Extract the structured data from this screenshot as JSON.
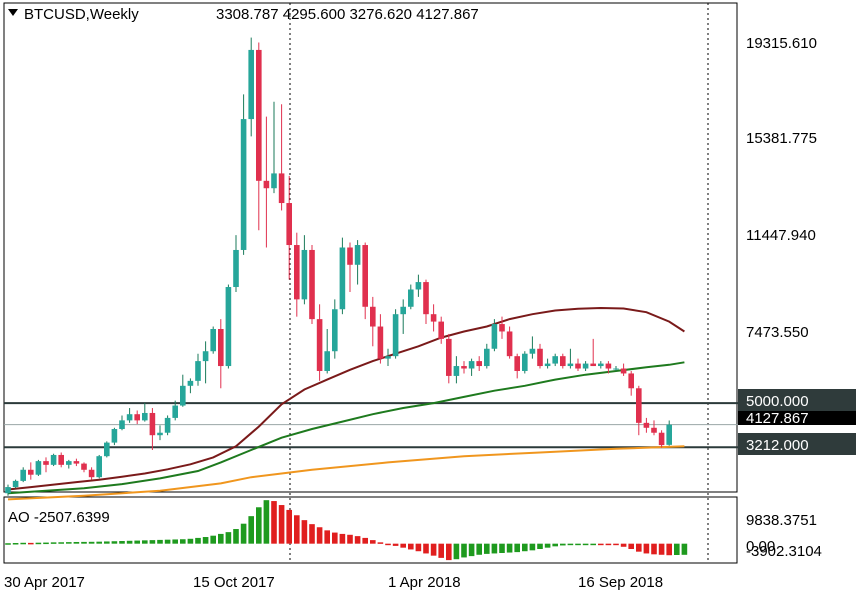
{
  "colors": {
    "bull": "#26a69a",
    "bull_dark": "#1a7a5a",
    "bear": "#e0304e",
    "ma_long": "#7a1a1a",
    "ma_mid": "#1e7a1e",
    "ma_short": "#f0961e",
    "level_line": "#2b3a3a",
    "label_bg": "#2f3b3b",
    "ao_up": "#1e9a1e",
    "ao_down": "#e01e1e",
    "axis": "#000000"
  },
  "header": {
    "symbol": "BTCUSD,Weekly",
    "ohlc": "3308.787 4295.600 3276.620 4127.867",
    "dropdown_icon": "triangle-down-icon"
  },
  "chart_data": {
    "type": "candlestick",
    "title": "BTCUSD,Weekly",
    "price_axis_labels": [
      "19315.610",
      "15381.775",
      "11447.940",
      "7473.550"
    ],
    "x_tick_labels": [
      "30 Apr 2017",
      "15 Oct 2017",
      "1 Apr 2018",
      "16 Sep 2018"
    ],
    "ylim": [
      1400,
      21200
    ],
    "current_price": "4127.867",
    "levels": [
      {
        "label": "5000.000",
        "value": 5000
      },
      {
        "label": "3212.000",
        "value": 3212
      }
    ],
    "candles": [
      [
        1350,
        1700,
        1250,
        1600
      ],
      [
        1600,
        1900,
        1550,
        1850
      ],
      [
        1850,
        2400,
        1800,
        2300
      ],
      [
        2300,
        2600,
        1900,
        2100
      ],
      [
        2100,
        2700,
        2050,
        2650
      ],
      [
        2650,
        2800,
        2200,
        2500
      ],
      [
        2500,
        2950,
        2450,
        2900
      ],
      [
        2900,
        3000,
        2400,
        2500
      ],
      [
        2500,
        2700,
        2350,
        2650
      ],
      [
        2650,
        2750,
        2450,
        2550
      ],
      [
        2550,
        2600,
        2200,
        2300
      ],
      [
        2300,
        2400,
        1900,
        2000
      ],
      [
        2000,
        2900,
        1950,
        2850
      ],
      [
        2850,
        3450,
        2800,
        3400
      ],
      [
        3400,
        4000,
        3300,
        3950
      ],
      [
        3950,
        4500,
        3900,
        4300
      ],
      [
        4300,
        4800,
        4200,
        4550
      ],
      [
        4550,
        4700,
        4150,
        4300
      ],
      [
        4300,
        5000,
        4250,
        4600
      ],
      [
        4600,
        4800,
        3100,
        3700
      ],
      [
        3700,
        4100,
        3500,
        3800
      ],
      [
        3800,
        4500,
        3700,
        4400
      ],
      [
        4400,
        5100,
        4300,
        4900
      ],
      [
        4900,
        6150,
        4850,
        5700
      ],
      [
        5700,
        6000,
        5400,
        5900
      ],
      [
        5900,
        7000,
        5700,
        6700
      ],
      [
        6700,
        7500,
        5800,
        7100
      ],
      [
        7100,
        8100,
        7000,
        8000
      ],
      [
        8000,
        8400,
        5600,
        6500
      ],
      [
        6500,
        9800,
        6400,
        9700
      ],
      [
        9700,
        11800,
        9500,
        11200
      ],
      [
        11200,
        17500,
        11000,
        16500
      ],
      [
        16500,
        19800,
        15800,
        19300
      ],
      [
        19300,
        19600,
        12000,
        14000
      ],
      [
        14000,
        16600,
        11300,
        13700
      ],
      [
        13700,
        17200,
        13500,
        14300
      ],
      [
        14300,
        17100,
        12800,
        13100
      ],
      [
        13100,
        14200,
        10000,
        11400
      ],
      [
        11400,
        11900,
        8500,
        9200
      ],
      [
        9200,
        11800,
        9000,
        11200
      ],
      [
        11200,
        11400,
        8200,
        8400
      ],
      [
        8400,
        9000,
        5900,
        6300
      ],
      [
        6300,
        8000,
        6200,
        7100
      ],
      [
        7100,
        9200,
        6800,
        8800
      ],
      [
        8800,
        11700,
        8600,
        11300
      ],
      [
        11300,
        11500,
        9500,
        10600
      ],
      [
        10600,
        11600,
        9800,
        11400
      ],
      [
        11400,
        11500,
        8400,
        8900
      ],
      [
        8900,
        9300,
        7300,
        8100
      ],
      [
        8100,
        8600,
        6600,
        6800
      ],
      [
        6800,
        7200,
        6500,
        6900
      ],
      [
        6900,
        8800,
        6800,
        8600
      ],
      [
        8600,
        9200,
        7800,
        8900
      ],
      [
        8900,
        9800,
        8800,
        9600
      ],
      [
        9600,
        10200,
        9300,
        9900
      ],
      [
        9900,
        10000,
        8200,
        8600
      ],
      [
        8600,
        9000,
        7900,
        8300
      ],
      [
        8300,
        8500,
        7400,
        7600
      ],
      [
        7600,
        7800,
        5800,
        6100
      ],
      [
        6100,
        6900,
        5800,
        6500
      ],
      [
        6500,
        6700,
        6200,
        6400
      ],
      [
        6400,
        6800,
        6100,
        6700
      ],
      [
        6700,
        6900,
        6300,
        6500
      ],
      [
        6500,
        7400,
        6400,
        7200
      ],
      [
        7200,
        8400,
        7100,
        8200
      ],
      [
        8200,
        8500,
        7600,
        7900
      ],
      [
        7900,
        8100,
        6800,
        6900
      ],
      [
        6900,
        7000,
        6000,
        6300
      ],
      [
        6300,
        7100,
        6200,
        7000
      ],
      [
        7000,
        7700,
        6800,
        7200
      ],
      [
        7200,
        7400,
        6400,
        6500
      ],
      [
        6500,
        6800,
        6400,
        6600
      ],
      [
        6600,
        7000,
        6500,
        6900
      ],
      [
        6900,
        7000,
        6400,
        6500
      ],
      [
        6500,
        7200,
        6400,
        6600
      ],
      [
        6600,
        6800,
        6300,
        6400
      ],
      [
        6400,
        6700,
        6300,
        6600
      ],
      [
        6600,
        7600,
        6500,
        6500
      ],
      [
        6500,
        6700,
        6400,
        6600
      ],
      [
        6600,
        6700,
        6200,
        6400
      ],
      [
        6400,
        6500,
        6300,
        6400
      ],
      [
        6400,
        6600,
        6100,
        6200
      ],
      [
        6200,
        6300,
        5300,
        5600
      ],
      [
        5600,
        5700,
        3700,
        4200
      ],
      [
        4200,
        4400,
        3800,
        4000
      ],
      [
        4000,
        4300,
        3700,
        3800
      ],
      [
        3800,
        3900,
        3200,
        3300
      ],
      [
        3308.787,
        4295.6,
        3276.62,
        4127.867
      ]
    ],
    "moving_averages": [
      {
        "name": "long",
        "values": [
          [
            0,
            1500
          ],
          [
            3,
            1600
          ],
          [
            6,
            1700
          ],
          [
            9,
            1800
          ],
          [
            12,
            1900
          ],
          [
            15,
            2020
          ],
          [
            18,
            2150
          ],
          [
            21,
            2320
          ],
          [
            24,
            2520
          ],
          [
            27,
            2800
          ],
          [
            30,
            3250
          ],
          [
            33,
            4050
          ],
          [
            36,
            4950
          ],
          [
            39,
            5550
          ],
          [
            42,
            5950
          ],
          [
            45,
            6350
          ],
          [
            48,
            6700
          ],
          [
            51,
            7000
          ],
          [
            54,
            7300
          ],
          [
            57,
            7650
          ],
          [
            60,
            7900
          ],
          [
            63,
            8100
          ],
          [
            66,
            8400
          ],
          [
            69,
            8600
          ],
          [
            72,
            8750
          ],
          [
            75,
            8820
          ],
          [
            78,
            8850
          ],
          [
            81,
            8830
          ],
          [
            84,
            8680
          ],
          [
            87,
            8300
          ],
          [
            89,
            7900
          ]
        ]
      },
      {
        "name": "mid",
        "values": [
          [
            0,
            1350
          ],
          [
            5,
            1450
          ],
          [
            10,
            1550
          ],
          [
            15,
            1720
          ],
          [
            20,
            1950
          ],
          [
            25,
            2250
          ],
          [
            28,
            2600
          ],
          [
            32,
            3100
          ],
          [
            36,
            3600
          ],
          [
            40,
            3950
          ],
          [
            44,
            4250
          ],
          [
            48,
            4550
          ],
          [
            52,
            4800
          ],
          [
            56,
            5000
          ],
          [
            60,
            5250
          ],
          [
            64,
            5500
          ],
          [
            68,
            5700
          ],
          [
            72,
            5950
          ],
          [
            76,
            6150
          ],
          [
            80,
            6300
          ],
          [
            84,
            6450
          ],
          [
            87,
            6550
          ],
          [
            89,
            6650
          ]
        ]
      },
      {
        "name": "short",
        "values": [
          [
            0,
            1100
          ],
          [
            10,
            1250
          ],
          [
            20,
            1450
          ],
          [
            28,
            1750
          ],
          [
            32,
            2000
          ],
          [
            36,
            2150
          ],
          [
            40,
            2300
          ],
          [
            50,
            2600
          ],
          [
            60,
            2850
          ],
          [
            70,
            3000
          ],
          [
            80,
            3150
          ],
          [
            89,
            3250
          ]
        ]
      }
    ],
    "indicator": {
      "label": "AO -2507.6399",
      "axis_labels": [
        "9838.3751",
        "0.00",
        "-3902.3104"
      ],
      "range": [
        -3902.3104,
        9838.3751
      ],
      "values": [
        100,
        150,
        200,
        180,
        220,
        250,
        300,
        320,
        350,
        380,
        400,
        420,
        450,
        500,
        550,
        600,
        650,
        700,
        750,
        800,
        850,
        900,
        950,
        1000,
        1100,
        1300,
        1500,
        1800,
        2200,
        2600,
        3300,
        4500,
        6200,
        8200,
        9800,
        9600,
        8700,
        7600,
        6400,
        5300,
        4400,
        3700,
        3000,
        2500,
        2200,
        2000,
        1700,
        1300,
        800,
        300,
        -100,
        -500,
        -900,
        -1300,
        -1700,
        -2200,
        -2700,
        -3200,
        -3700,
        -3500,
        -3100,
        -2800,
        -2500,
        -2300,
        -2200,
        -2100,
        -2000,
        -1900,
        -1700,
        -1500,
        -1200,
        -900,
        -600,
        -400,
        -300,
        -200,
        -100,
        0,
        -50,
        -100,
        -300,
        -700,
        -1200,
        -1800,
        -2200,
        -2400,
        -2500,
        -2600,
        -2550,
        -2507.6399
      ]
    }
  }
}
